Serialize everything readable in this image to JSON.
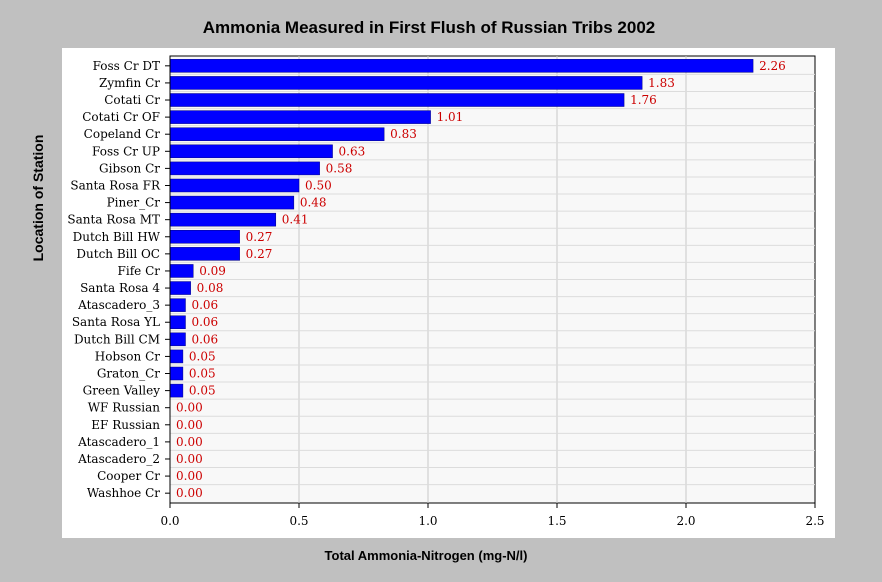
{
  "chart_data": {
    "type": "bar",
    "orientation": "horizontal",
    "title": "Ammonia Measured in First Flush of Russian Tribs 2002",
    "xlabel": "Total Ammonia-Nitrogen (mg-N/l)",
    "ylabel": "Location of Station",
    "xlim": [
      0,
      2.5
    ],
    "xticks": [
      0.0,
      0.5,
      1.0,
      1.5,
      2.0,
      2.5
    ],
    "xtick_labels": [
      "0.0",
      "0.5",
      "1.0",
      "1.5",
      "2.0",
      "2.5"
    ],
    "grid": true,
    "bar_color": "#0000ff",
    "label_color": "#cc0000",
    "categories": [
      "Foss Cr DT",
      "Zymfin Cr",
      "Cotati Cr",
      "Cotati Cr OF",
      "Copeland Cr",
      "Foss Cr UP",
      "Gibson Cr",
      "Santa Rosa FR",
      "Piner_Cr",
      "Santa Rosa MT",
      "Dutch Bill HW",
      "Dutch Bill OC",
      "Fife Cr",
      "Santa Rosa 4",
      "Atascadero_3",
      "Santa Rosa YL",
      "Dutch Bill CM",
      "Hobson Cr",
      "Graton_Cr",
      "Green Valley",
      "WF Russian",
      "EF Russian",
      "Atascadero_1",
      "Atascadero_2",
      "Cooper Cr",
      "Washhoe Cr"
    ],
    "values": [
      2.26,
      1.83,
      1.76,
      1.01,
      0.83,
      0.63,
      0.58,
      0.5,
      0.48,
      0.41,
      0.27,
      0.27,
      0.09,
      0.08,
      0.06,
      0.06,
      0.06,
      0.05,
      0.05,
      0.05,
      0.0,
      0.0,
      0.0,
      0.0,
      0.0,
      0.0
    ],
    "value_labels": [
      "2.26",
      "1.83",
      "1.76",
      "1.01",
      "0.83",
      "0.63",
      "0.58",
      "0.50",
      "0.48",
      "0.41",
      "0.27",
      "0.27",
      "0.09",
      "0.08",
      "0.06",
      "0.06",
      "0.06",
      "0.05",
      "0.05",
      "0.05",
      "0.00",
      "0.00",
      "0.00",
      "0.00",
      "0.00",
      "0.00"
    ]
  }
}
